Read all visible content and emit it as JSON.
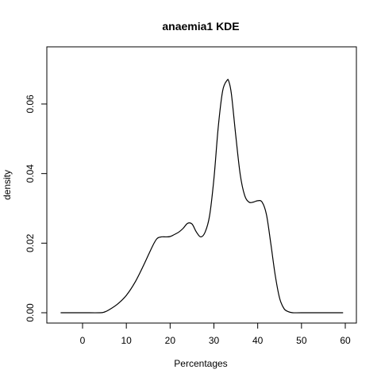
{
  "chart_data": {
    "type": "line",
    "title": "anaemia1  KDE",
    "xlabel": "Percentages",
    "ylabel": "density",
    "xlim": [
      -5,
      60
    ],
    "ylim": [
      0,
      0.07
    ],
    "x_ticks": [
      0,
      10,
      20,
      30,
      40,
      50,
      60
    ],
    "y_ticks": [
      0.0,
      0.02,
      0.04,
      0.06
    ],
    "x_tick_labels": [
      "0",
      "10",
      "20",
      "30",
      "40",
      "50",
      "60"
    ],
    "y_tick_labels": [
      "0.00",
      "0.02",
      "0.04",
      "0.06"
    ],
    "grid": false,
    "legend": "none",
    "line_color": "#000000",
    "series": [
      {
        "x": [
          -5,
          0,
          4,
          5,
          6,
          8,
          10,
          12,
          14,
          16,
          17,
          18,
          19,
          20,
          21,
          22,
          23,
          24,
          25,
          26,
          27,
          28,
          29,
          30,
          31,
          32,
          33,
          33.4,
          34,
          35,
          36,
          37,
          38,
          39,
          40,
          41,
          42,
          43,
          44,
          45,
          46,
          47,
          48,
          50,
          55,
          59.5
        ],
        "y": [
          0.0,
          0.0,
          0.0,
          0.0002,
          0.0008,
          0.0025,
          0.005,
          0.0088,
          0.0138,
          0.0192,
          0.0213,
          0.0218,
          0.0218,
          0.0219,
          0.0225,
          0.0232,
          0.0243,
          0.0257,
          0.0255,
          0.0232,
          0.0218,
          0.0232,
          0.0278,
          0.0385,
          0.0535,
          0.0638,
          0.0668,
          0.0665,
          0.0628,
          0.0508,
          0.0398,
          0.0338,
          0.0318,
          0.0318,
          0.0322,
          0.0318,
          0.0282,
          0.0198,
          0.0108,
          0.0042,
          0.0012,
          0.0003,
          0.0,
          0.0,
          0.0,
          0.0
        ]
      }
    ]
  }
}
